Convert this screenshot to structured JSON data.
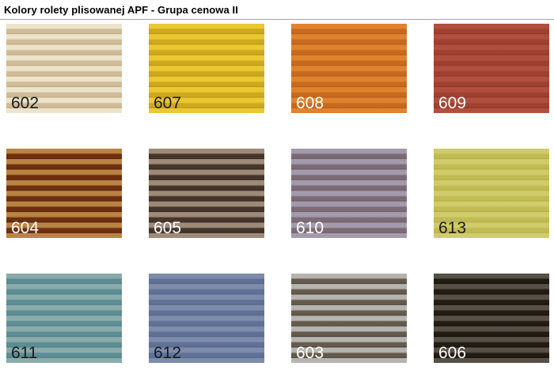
{
  "page": {
    "title": "Kolory rolety plisowanej APF - Grupa cenowa II"
  },
  "colors": {
    "background": "#ffffff",
    "title_text": "#000000",
    "divider": "#a2aa80"
  },
  "swatches": [
    {
      "code": "602",
      "label_color": "#1c1c1c",
      "stripe_light": "#ece3cb",
      "stripe_dark": "#cfbb97",
      "stripe_edge": "#c2aa81"
    },
    {
      "code": "607",
      "label_color": "#1c1c1c",
      "stripe_light": "#eac832",
      "stripe_dark": "#d0a81e",
      "stripe_edge": "#bd9715"
    },
    {
      "code": "608",
      "label_color": "#ffffff",
      "stripe_light": "#e0832f",
      "stripe_dark": "#c86a1e",
      "stripe_edge": "#b85d18"
    },
    {
      "code": "609",
      "label_color": "#ffffff",
      "stripe_light": "#b14f3e",
      "stripe_dark": "#9e4131",
      "stripe_edge": "#8f392a"
    },
    {
      "code": "604",
      "label_color": "#ffffff",
      "stripe_light": "#b98443",
      "stripe_dark": "#6f2f10",
      "stripe_edge": "#58240a"
    },
    {
      "code": "605",
      "label_color": "#ffffff",
      "stripe_light": "#9d8a79",
      "stripe_dark": "#463529",
      "stripe_edge": "#362820"
    },
    {
      "code": "610",
      "label_color": "#ffffff",
      "stripe_light": "#a39bac",
      "stripe_dark": "#7c6b75",
      "stripe_edge": "#6e5e68"
    },
    {
      "code": "613",
      "label_color": "#1c1c1c",
      "stripe_light": "#d0cc6a",
      "stripe_dark": "#c0bb52",
      "stripe_edge": "#b5b049"
    },
    {
      "code": "611",
      "label_color": "#1c1c1c",
      "stripe_light": "#8aabaa",
      "stripe_dark": "#5d8d95",
      "stripe_edge": "#52818a"
    },
    {
      "code": "612",
      "label_color": "#151a26",
      "stripe_light": "#7d8cab",
      "stripe_dark": "#5f7194",
      "stripe_edge": "#56678a"
    },
    {
      "code": "603",
      "label_color": "#ffffff",
      "stripe_light": "#b5b4b0",
      "stripe_dark": "#655b4d",
      "stripe_edge": "#4c4438"
    },
    {
      "code": "606",
      "label_color": "#ffffff",
      "stripe_light": "#575046",
      "stripe_dark": "#211c14",
      "stripe_edge": "#14100b"
    }
  ]
}
